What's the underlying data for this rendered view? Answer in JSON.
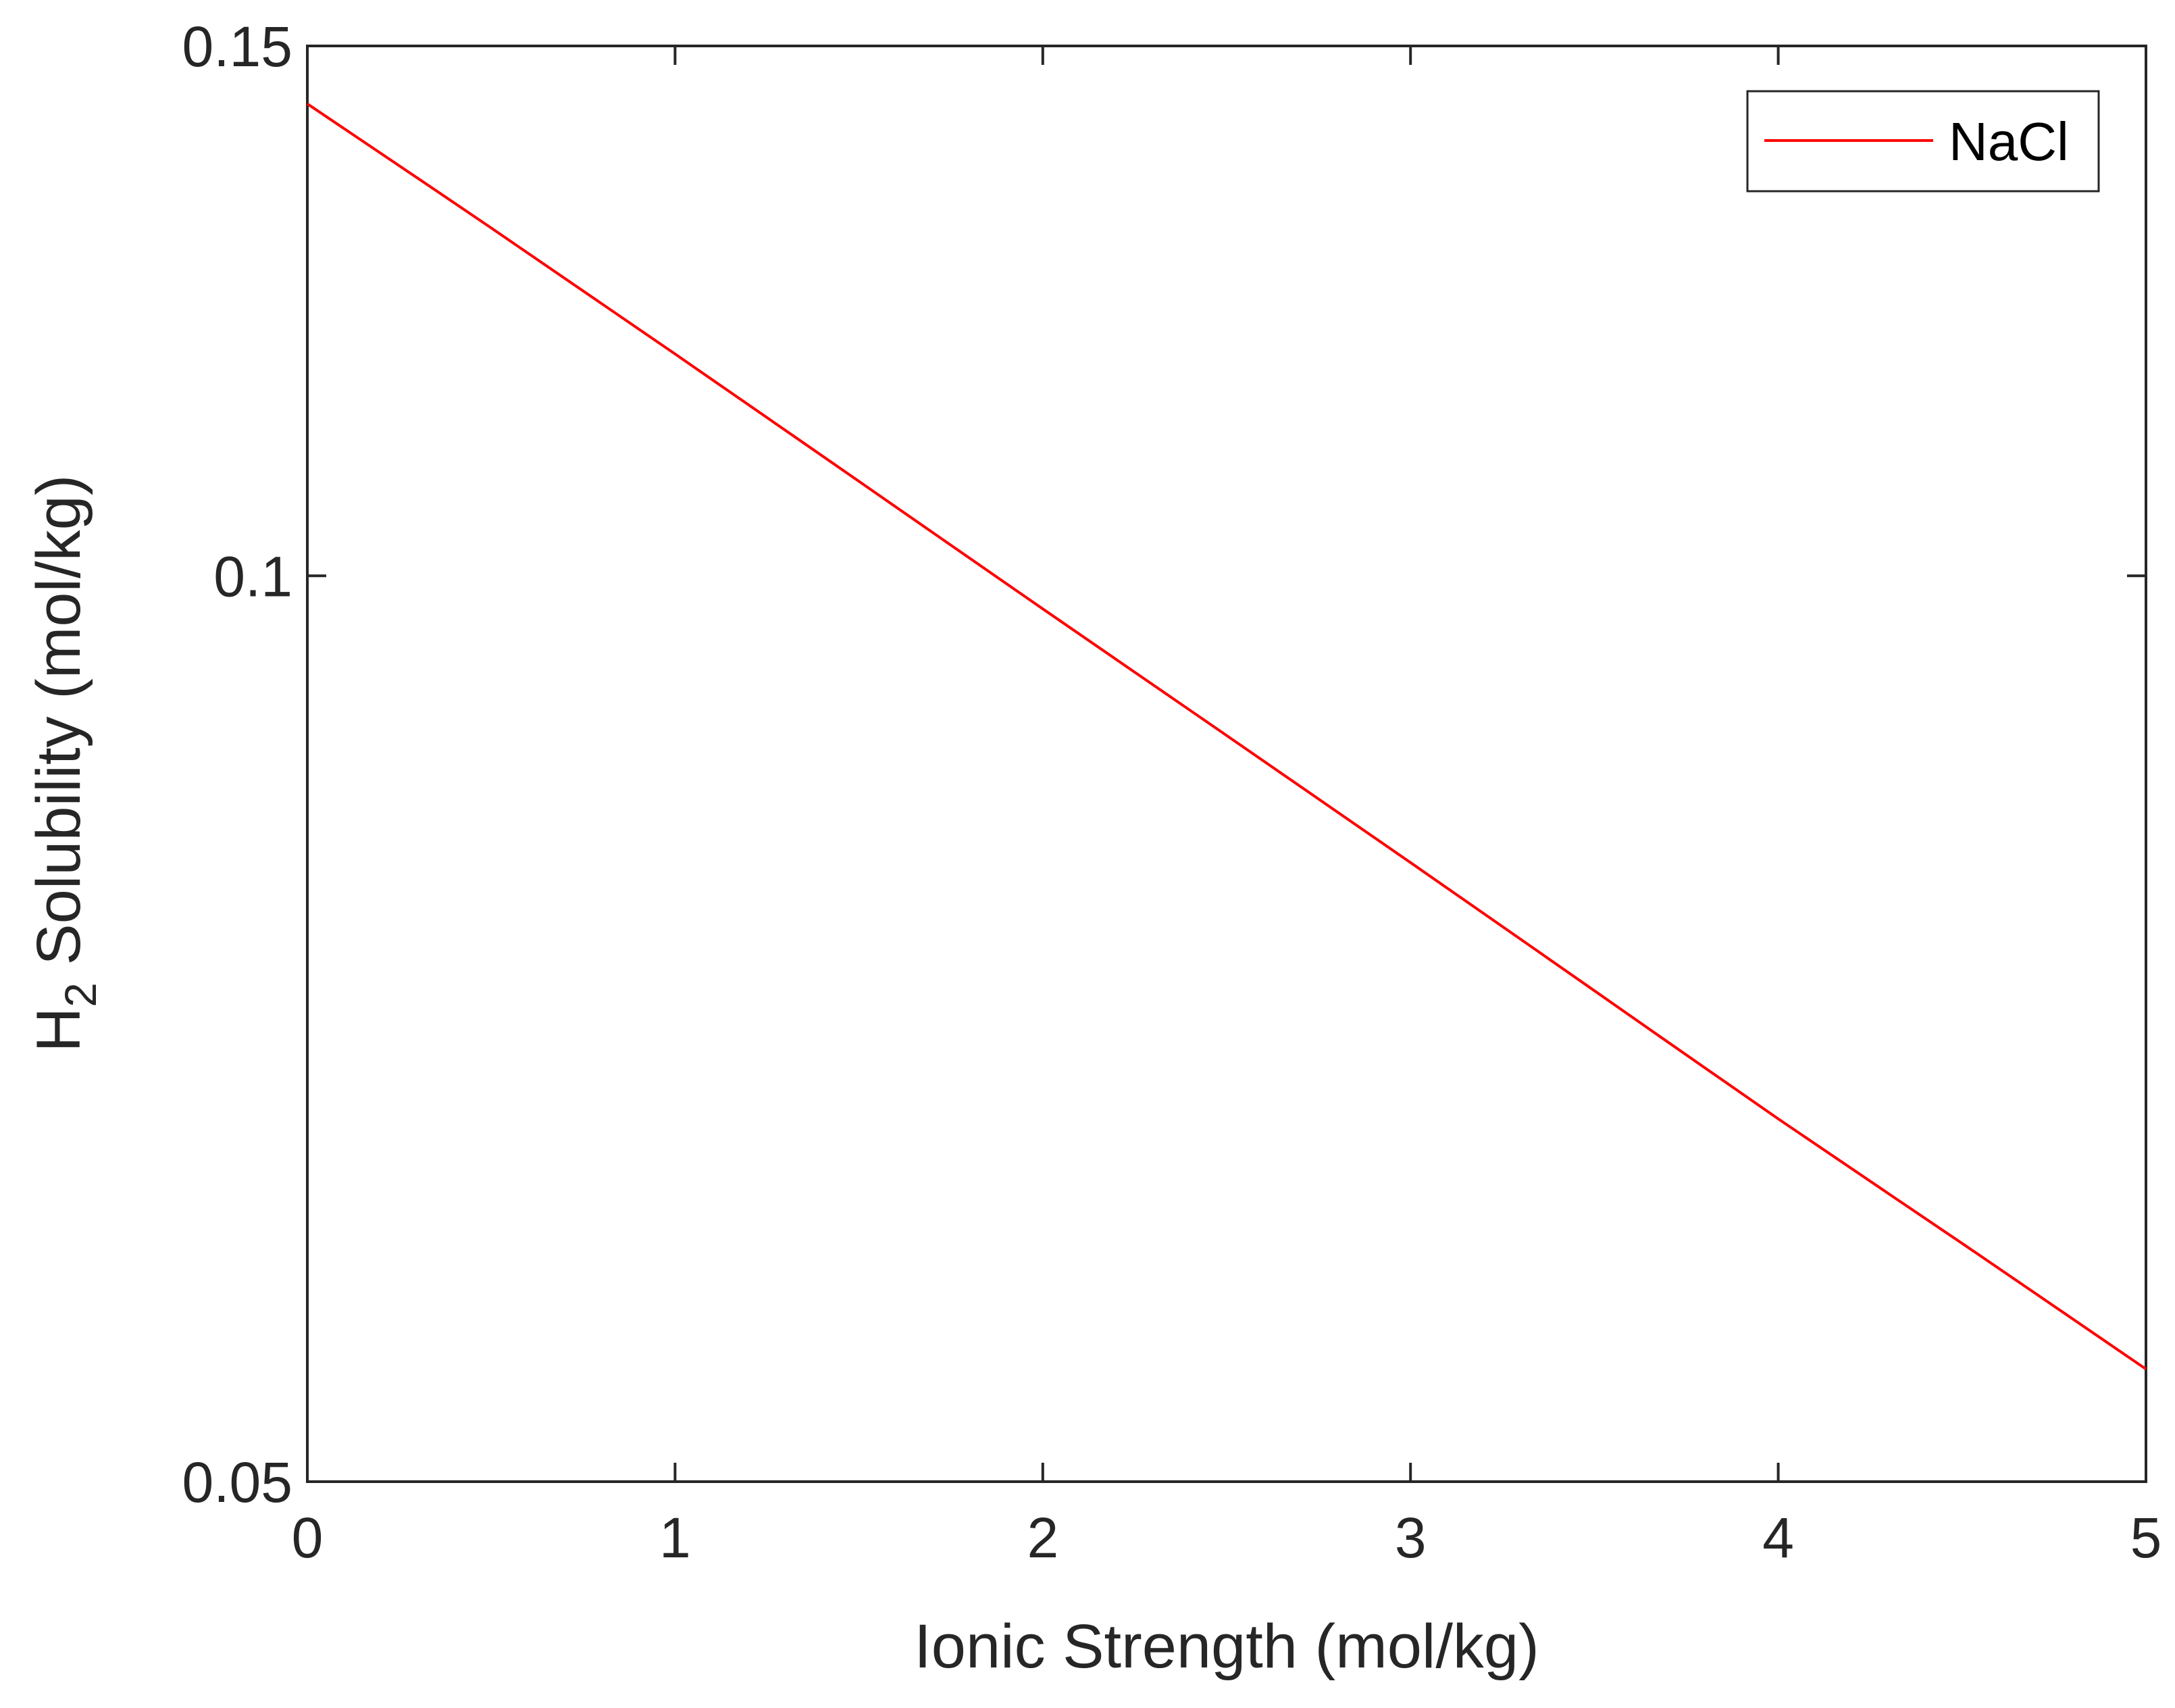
{
  "chart_data": {
    "type": "line",
    "title": "",
    "xlabel": "Ionic Strength (mol/kg)",
    "ylabel": {
      "prefix": "H",
      "subscript": "2",
      "suffix": " Solubility (mol/kg)"
    },
    "xlim": [
      0,
      5
    ],
    "ylim": [
      0.05,
      0.15
    ],
    "y_scale": "log",
    "xticks": [
      0,
      1,
      2,
      3,
      4,
      5
    ],
    "xtick_labels": [
      "0",
      "1",
      "2",
      "3",
      "4",
      "5"
    ],
    "yticks": [
      0.05,
      0.1,
      0.15
    ],
    "ytick_labels": [
      "0.05",
      "0.1",
      "0.15"
    ],
    "grid": false,
    "legend": {
      "position": "top-right",
      "entries": [
        "NaCl"
      ]
    },
    "series": [
      {
        "name": "NaCl",
        "color": "#ff0000",
        "x": [
          0,
          0.5,
          1,
          1.5,
          2,
          2.5,
          3,
          3.5,
          4,
          4.5,
          5
        ],
        "y": [
          0.1435,
          0.1305,
          0.1185,
          0.1075,
          0.0975,
          0.0885,
          0.0803,
          0.0728,
          0.066,
          0.06,
          0.0545
        ]
      }
    ]
  }
}
